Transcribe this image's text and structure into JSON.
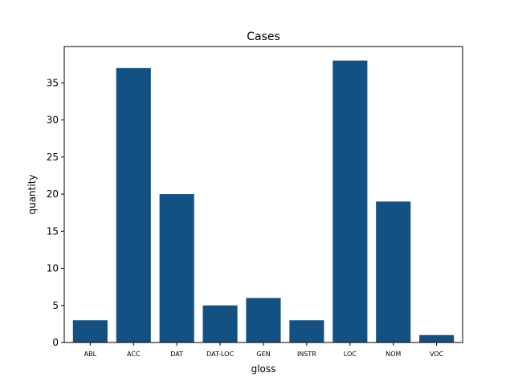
{
  "chart_data": {
    "type": "bar",
    "title": "Cases",
    "xlabel": "gloss",
    "ylabel": "quantity",
    "categories": [
      "ABL",
      "ACC",
      "DAT",
      "DAT-LOC",
      "GEN",
      "INSTR",
      "LOC",
      "NOM",
      "VOC"
    ],
    "values": [
      3,
      37,
      20,
      5,
      6,
      3,
      38,
      19,
      1
    ],
    "ylim": [
      0,
      39.9
    ],
    "yticks": [
      0,
      5,
      10,
      15,
      20,
      25,
      30,
      35
    ],
    "bar_color": "#145183",
    "grid": false,
    "legend": "none"
  }
}
